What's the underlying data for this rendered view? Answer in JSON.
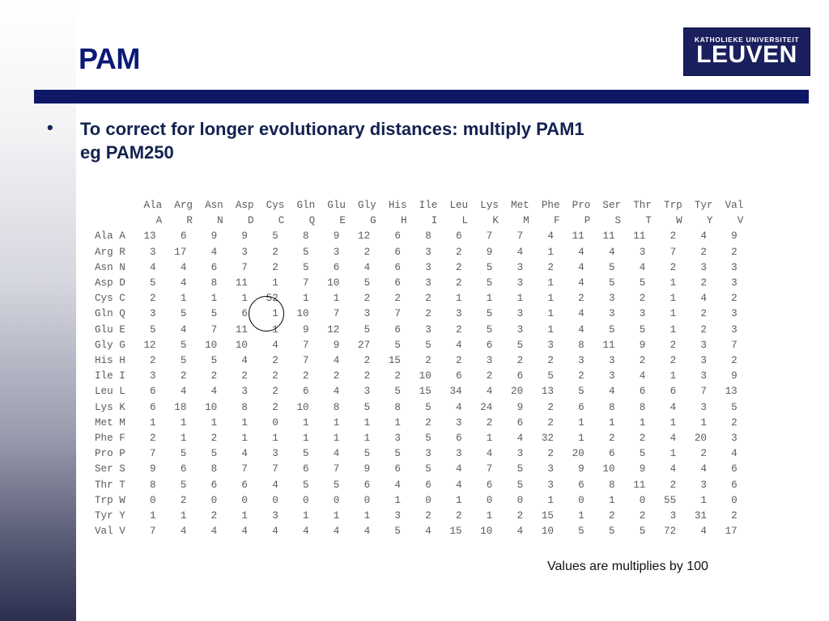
{
  "slide": {
    "title": "PAM",
    "logo": {
      "line1": "KATHOLIEKE UNIVERSITEIT",
      "line2": "LEUVEN"
    },
    "bullet_marker": "•",
    "bullet_line1": "To correct for longer evolutionary distances: multiply PAM1",
    "bullet_line2": "eg PAM250",
    "note": "Values are multiplies by 100"
  },
  "matrix": {
    "column_names": [
      "Ala",
      "Arg",
      "Asn",
      "Asp",
      "Cys",
      "Gln",
      "Glu",
      "Gly",
      "His",
      "Ile",
      "Leu",
      "Lys",
      "Met",
      "Phe",
      "Pro",
      "Ser",
      "Thr",
      "Trp",
      "Tyr",
      "Val"
    ],
    "column_codes": [
      "A",
      "R",
      "N",
      "D",
      "C",
      "Q",
      "E",
      "G",
      "H",
      "I",
      "L",
      "K",
      "M",
      "F",
      "P",
      "S",
      "T",
      "W",
      "Y",
      "V"
    ],
    "rows": [
      {
        "name": "Ala",
        "code": "A",
        "values": [
          13,
          6,
          9,
          9,
          5,
          8,
          9,
          12,
          6,
          8,
          6,
          7,
          7,
          4,
          11,
          11,
          11,
          2,
          4,
          9
        ]
      },
      {
        "name": "Arg",
        "code": "R",
        "values": [
          3,
          17,
          4,
          3,
          2,
          5,
          3,
          2,
          6,
          3,
          2,
          9,
          4,
          1,
          4,
          4,
          3,
          7,
          2,
          2
        ]
      },
      {
        "name": "Asn",
        "code": "N",
        "values": [
          4,
          4,
          6,
          7,
          2,
          5,
          6,
          4,
          6,
          3,
          2,
          5,
          3,
          2,
          4,
          5,
          4,
          2,
          3,
          3
        ]
      },
      {
        "name": "Asp",
        "code": "D",
        "values": [
          5,
          4,
          8,
          11,
          1,
          7,
          10,
          5,
          6,
          3,
          2,
          5,
          3,
          1,
          4,
          5,
          5,
          1,
          2,
          3
        ]
      },
      {
        "name": "Cys",
        "code": "C",
        "values": [
          2,
          1,
          1,
          1,
          52,
          1,
          1,
          2,
          2,
          2,
          1,
          1,
          1,
          1,
          2,
          3,
          2,
          1,
          4,
          2
        ]
      },
      {
        "name": "Gln",
        "code": "Q",
        "values": [
          3,
          5,
          5,
          6,
          1,
          10,
          7,
          3,
          7,
          2,
          3,
          5,
          3,
          1,
          4,
          3,
          3,
          1,
          2,
          3
        ]
      },
      {
        "name": "Glu",
        "code": "E",
        "values": [
          5,
          4,
          7,
          11,
          1,
          9,
          12,
          5,
          6,
          3,
          2,
          5,
          3,
          1,
          4,
          5,
          5,
          1,
          2,
          3
        ]
      },
      {
        "name": "Gly",
        "code": "G",
        "values": [
          12,
          5,
          10,
          10,
          4,
          7,
          9,
          27,
          5,
          5,
          4,
          6,
          5,
          3,
          8,
          11,
          9,
          2,
          3,
          7
        ]
      },
      {
        "name": "His",
        "code": "H",
        "values": [
          2,
          5,
          5,
          4,
          2,
          7,
          4,
          2,
          15,
          2,
          2,
          3,
          2,
          2,
          3,
          3,
          2,
          2,
          3,
          2
        ]
      },
      {
        "name": "Ile",
        "code": "I",
        "values": [
          3,
          2,
          2,
          2,
          2,
          2,
          2,
          2,
          2,
          10,
          6,
          2,
          6,
          5,
          2,
          3,
          4,
          1,
          3,
          9
        ]
      },
      {
        "name": "Leu",
        "code": "L",
        "values": [
          6,
          4,
          4,
          3,
          2,
          6,
          4,
          3,
          5,
          15,
          34,
          4,
          20,
          13,
          5,
          4,
          6,
          6,
          7,
          13
        ]
      },
      {
        "name": "Lys",
        "code": "K",
        "values": [
          6,
          18,
          10,
          8,
          2,
          10,
          8,
          5,
          8,
          5,
          4,
          24,
          9,
          2,
          6,
          8,
          8,
          4,
          3,
          5
        ]
      },
      {
        "name": "Met",
        "code": "M",
        "values": [
          1,
          1,
          1,
          1,
          0,
          1,
          1,
          1,
          1,
          2,
          3,
          2,
          6,
          2,
          1,
          1,
          1,
          1,
          1,
          2
        ]
      },
      {
        "name": "Phe",
        "code": "F",
        "values": [
          2,
          1,
          2,
          1,
          1,
          1,
          1,
          1,
          3,
          5,
          6,
          1,
          4,
          32,
          1,
          2,
          2,
          4,
          20,
          3
        ]
      },
      {
        "name": "Pro",
        "code": "P",
        "values": [
          7,
          5,
          5,
          4,
          3,
          5,
          4,
          5,
          5,
          3,
          3,
          4,
          3,
          2,
          20,
          6,
          5,
          1,
          2,
          4
        ]
      },
      {
        "name": "Ser",
        "code": "S",
        "values": [
          9,
          6,
          8,
          7,
          7,
          6,
          7,
          9,
          6,
          5,
          4,
          7,
          5,
          3,
          9,
          10,
          9,
          4,
          4,
          6
        ]
      },
      {
        "name": "Thr",
        "code": "T",
        "values": [
          8,
          5,
          6,
          6,
          4,
          5,
          5,
          6,
          4,
          6,
          4,
          6,
          5,
          3,
          6,
          8,
          11,
          2,
          3,
          6
        ]
      },
      {
        "name": "Trp",
        "code": "W",
        "values": [
          0,
          2,
          0,
          0,
          0,
          0,
          0,
          0,
          1,
          0,
          1,
          0,
          0,
          1,
          0,
          1,
          0,
          55,
          1,
          0
        ]
      },
      {
        "name": "Tyr",
        "code": "Y",
        "values": [
          1,
          1,
          2,
          1,
          3,
          1,
          1,
          1,
          3,
          2,
          2,
          1,
          2,
          15,
          1,
          2,
          2,
          3,
          31,
          2
        ]
      },
      {
        "name": "Val",
        "code": "V",
        "values": [
          7,
          4,
          4,
          4,
          4,
          4,
          4,
          4,
          5,
          4,
          15,
          10,
          4,
          10,
          5,
          5,
          5,
          72,
          4,
          17
        ]
      }
    ]
  }
}
